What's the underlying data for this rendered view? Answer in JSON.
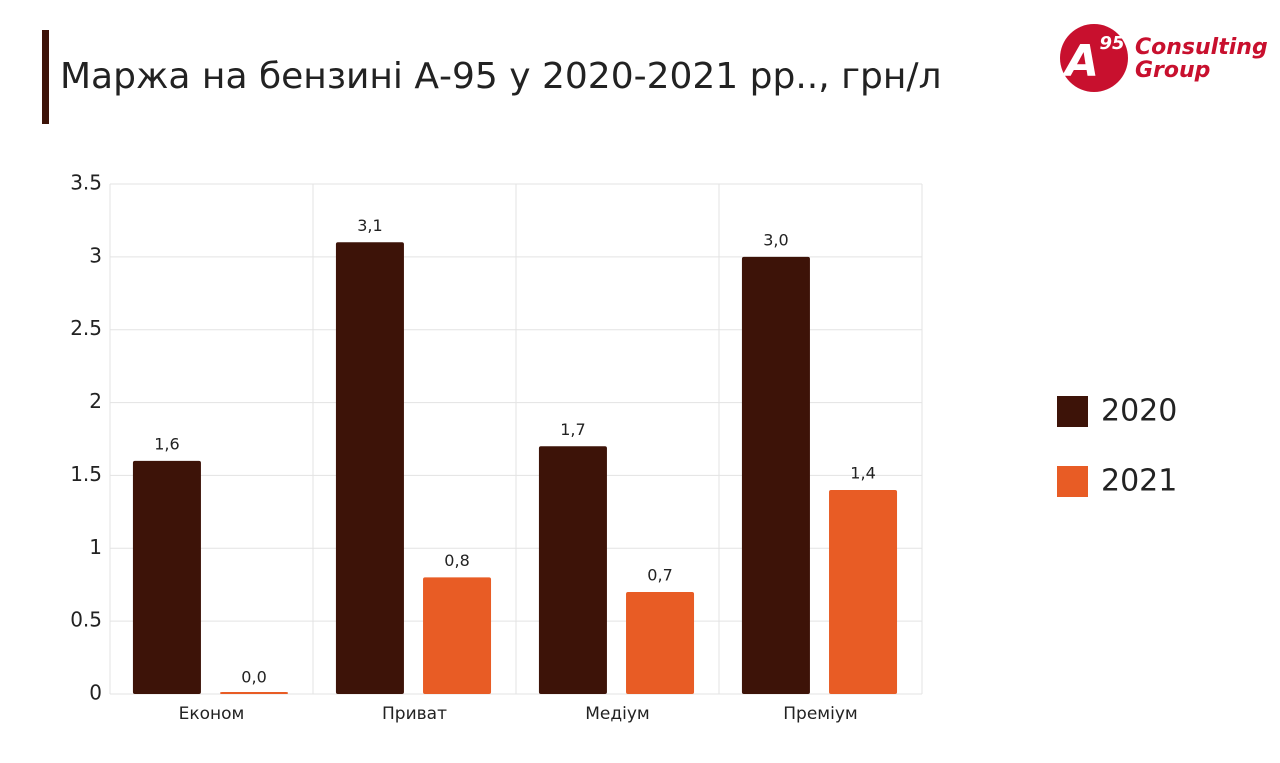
{
  "logo": {
    "mark": "A",
    "number": "95",
    "line1": "Consulting",
    "line2": "Group"
  },
  "chart_data": {
    "type": "bar",
    "title": "Маржа на бензині А-95 у 2020-2021 рр.., грн/л",
    "categories": [
      "Економ",
      "Приват",
      "Медіум",
      "Преміум"
    ],
    "series": [
      {
        "name": "2020",
        "color": "#3d1308",
        "values": [
          1.6,
          3.1,
          1.7,
          3.0
        ],
        "value_labels": [
          "1,6",
          "3,1",
          "1,7",
          "3,0"
        ]
      },
      {
        "name": "2021",
        "color": "#e85c25",
        "values": [
          0.0,
          0.8,
          0.7,
          1.4
        ],
        "value_labels": [
          "0,0",
          "0,8",
          "0,7",
          "1,4"
        ]
      }
    ],
    "ylim": [
      0,
      3.5
    ],
    "yticks": [
      0,
      0.5,
      1,
      1.5,
      2,
      2.5,
      3,
      3.5
    ],
    "grid": true,
    "legend": "right"
  }
}
